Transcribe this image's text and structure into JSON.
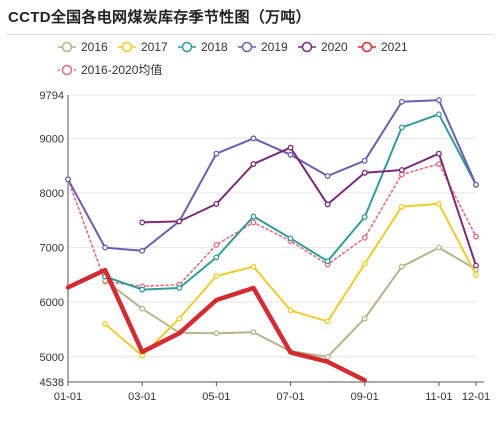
{
  "title": "CCTD全国各电网煤炭库存季节性图（万吨）",
  "chart_data": {
    "type": "line",
    "title": "CCTD全国各电网煤炭库存季节性图（万吨）",
    "x": [
      "01-01",
      "02-01",
      "03-01",
      "04-01",
      "05-01",
      "06-01",
      "07-01",
      "08-01",
      "09-01",
      "10-01",
      "11-01",
      "12-01"
    ],
    "xticks": [
      "01-01",
      "03-01",
      "05-01",
      "07-01",
      "09-01",
      "11-01",
      "12-01"
    ],
    "ylim": [
      4538,
      9794
    ],
    "yticks": [
      4538,
      5000,
      6000,
      7000,
      8000,
      9000,
      9794
    ],
    "grid": true,
    "legend_position": "top-left",
    "series": [
      {
        "name": "2016",
        "color": "#b7b38a",
        "width": 2,
        "dashed": false,
        "values": [
          null,
          6400,
          5880,
          5440,
          5430,
          5450,
          5100,
          5000,
          5700,
          6650,
          7000,
          6600
        ]
      },
      {
        "name": "2017",
        "color": "#f0cc2a",
        "width": 2,
        "dashed": false,
        "values": [
          null,
          5600,
          5020,
          5700,
          6480,
          6650,
          5850,
          5650,
          6700,
          7750,
          7800,
          6500
        ]
      },
      {
        "name": "2018",
        "color": "#2f9c9a",
        "width": 2,
        "dashed": false,
        "values": [
          null,
          6470,
          6230,
          6260,
          6820,
          7570,
          7170,
          6750,
          7560,
          9200,
          9440,
          8150
        ]
      },
      {
        "name": "2019",
        "color": "#6a5fb0",
        "width": 2,
        "dashed": false,
        "values": [
          8250,
          7000,
          6940,
          7480,
          8720,
          9000,
          8700,
          8310,
          8590,
          9670,
          9700,
          8150
        ]
      },
      {
        "name": "2020",
        "color": "#7b2a7a",
        "width": 2,
        "dashed": false,
        "values": [
          null,
          null,
          7460,
          7480,
          7800,
          8530,
          8830,
          7790,
          8370,
          8420,
          8720,
          6670
        ]
      },
      {
        "name": "2021",
        "color": "#d42a30",
        "width": 4.5,
        "dashed": false,
        "values": [
          6270,
          6590,
          5090,
          5430,
          6040,
          6260,
          5080,
          4910,
          4570,
          null,
          null,
          null
        ]
      },
      {
        "name": "2016-2020均值",
        "color": "#e86a7a",
        "width": 1.6,
        "dashed": true,
        "values": [
          8250,
          6380,
          6290,
          6320,
          7050,
          7460,
          7120,
          6690,
          7180,
          8340,
          8530,
          7200
        ]
      }
    ]
  }
}
